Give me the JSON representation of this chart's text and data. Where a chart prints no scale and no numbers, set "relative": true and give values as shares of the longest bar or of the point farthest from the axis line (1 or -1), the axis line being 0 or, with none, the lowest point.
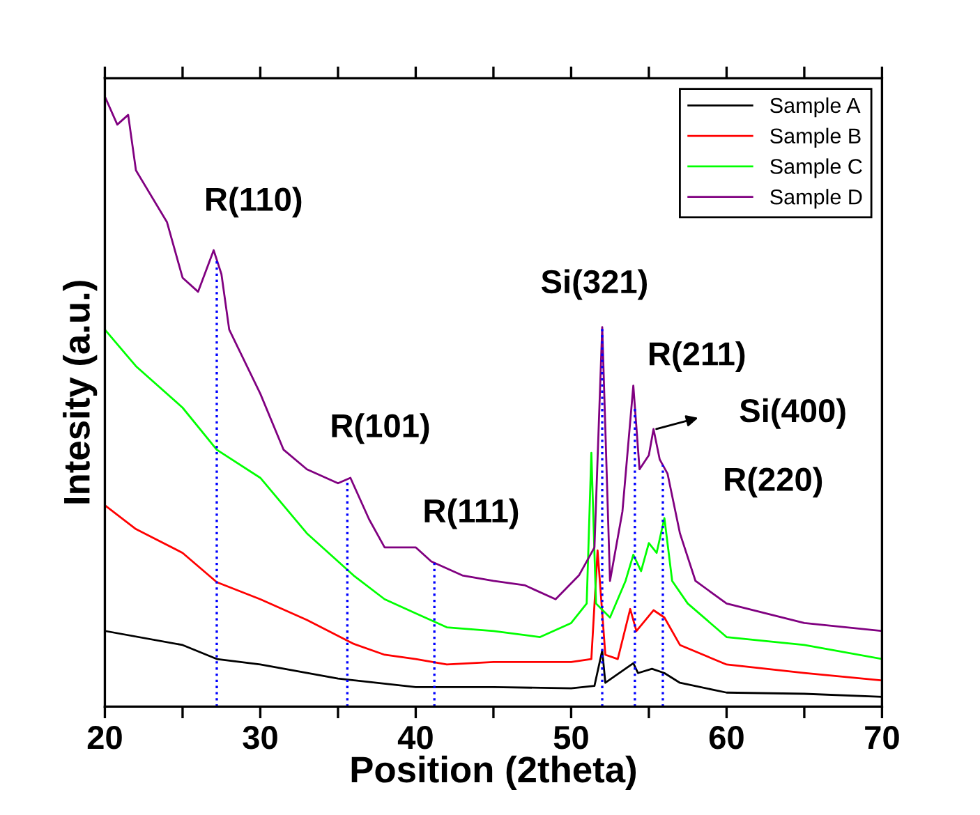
{
  "chart_data": {
    "type": "line",
    "relative": true,
    "xlabel": "Position (2theta)",
    "ylabel": "Intesity (a.u.)",
    "xlim": [
      20,
      70
    ],
    "xticks": [
      20,
      {
        "value": 25,
        "label": null
      },
      30,
      {
        "value": 35,
        "label": null
      },
      40,
      {
        "value": 45,
        "label": null
      },
      50,
      {
        "value": 55,
        "label": null
      },
      60,
      {
        "value": 65,
        "label": null
      },
      70
    ],
    "grid": false,
    "legend": "top right",
    "marker": "none",
    "line_style": "solid",
    "series": [
      {
        "name": "Sample A",
        "color": "#000000",
        "x": [
          20,
          25,
          27.2,
          30,
          35,
          40,
          45,
          50,
          51.5,
          52,
          52.2,
          54,
          54.3,
          55.2,
          56,
          57,
          60,
          65,
          70
        ],
        "values": [
          0.124,
          0.101,
          0.078,
          0.069,
          0.046,
          0.032,
          0.032,
          0.03,
          0.034,
          0.092,
          0.039,
          0.071,
          0.055,
          0.062,
          0.055,
          0.039,
          0.023,
          0.021,
          0.016
        ]
      },
      {
        "name": "Sample B",
        "color": "#ff0000",
        "x": [
          20,
          22,
          25,
          27.2,
          30,
          33,
          36,
          38,
          40,
          42,
          45,
          50,
          51.3,
          51.7,
          52.2,
          53,
          53.8,
          54.2,
          55.3,
          56,
          57,
          60,
          65,
          70
        ],
        "values": [
          0.33,
          0.291,
          0.252,
          0.204,
          0.176,
          0.142,
          0.103,
          0.085,
          0.078,
          0.069,
          0.073,
          0.073,
          0.078,
          0.256,
          0.085,
          0.078,
          0.16,
          0.124,
          0.158,
          0.146,
          0.101,
          0.069,
          0.055,
          0.043
        ]
      },
      {
        "name": "Sample C",
        "color": "#00ff00",
        "x": [
          20,
          22,
          25,
          27.2,
          30,
          33,
          36,
          38,
          40,
          42,
          45,
          48,
          50,
          51,
          51.3,
          51.6,
          52.5,
          53.5,
          54,
          54.5,
          55,
          55.5,
          56,
          56.5,
          57.5,
          60,
          65,
          70
        ],
        "values": [
          0.618,
          0.558,
          0.49,
          0.421,
          0.375,
          0.284,
          0.215,
          0.176,
          0.153,
          0.13,
          0.124,
          0.114,
          0.137,
          0.169,
          0.416,
          0.169,
          0.146,
          0.206,
          0.249,
          0.222,
          0.268,
          0.252,
          0.309,
          0.206,
          0.169,
          0.114,
          0.101,
          0.078
        ]
      },
      {
        "name": "Sample D",
        "color": "#800080",
        "x": [
          20,
          20.8,
          21.5,
          22,
          24,
          25,
          26,
          27,
          27.5,
          28,
          30,
          31.5,
          33,
          35,
          35.8,
          37,
          38,
          40,
          41,
          43,
          45,
          47,
          49,
          50.5,
          51.5,
          52,
          52.5,
          53.3,
          54,
          54.4,
          55,
          55.3,
          55.7,
          56.2,
          57,
          58,
          60,
          65,
          70
        ],
        "values": [
          1,
          0.954,
          0.97,
          0.879,
          0.794,
          0.703,
          0.68,
          0.748,
          0.709,
          0.618,
          0.513,
          0.421,
          0.389,
          0.366,
          0.375,
          0.307,
          0.261,
          0.261,
          0.238,
          0.215,
          0.206,
          0.199,
          0.176,
          0.215,
          0.261,
          0.622,
          0.206,
          0.32,
          0.526,
          0.389,
          0.412,
          0.455,
          0.405,
          0.382,
          0.284,
          0.206,
          0.169,
          0.137,
          0.124
        ]
      }
    ],
    "ref_lines": [
      {
        "axis": "x",
        "value": 27.2,
        "label": null,
        "color": "#0000ff",
        "line_style": "dotted"
      },
      {
        "axis": "x",
        "value": 35.6,
        "label": null,
        "color": "#0000ff",
        "line_style": "dotted"
      },
      {
        "axis": "x",
        "value": 41.2,
        "label": null,
        "color": "#0000ff",
        "line_style": "dotted"
      },
      {
        "axis": "x",
        "value": 52.0,
        "label": null,
        "color": "#0000ff",
        "line_style": "dotted"
      },
      {
        "axis": "x",
        "value": 54.1,
        "label": null,
        "color": "#0000ff",
        "line_style": "dotted"
      },
      {
        "axis": "x",
        "value": 55.9,
        "label": null,
        "color": "#0000ff",
        "line_style": "dotted"
      }
    ],
    "annotations": [
      {
        "text": "R(110)",
        "x": 27.2,
        "y": 0.7
      },
      {
        "text": "R(101)",
        "x": 35.6,
        "y": 0.37
      },
      {
        "text": "R(111)",
        "x": 41.2,
        "y": 0.24
      },
      {
        "text": "Si(321)",
        "x": 52.0,
        "y": 0.622
      },
      {
        "text": "R(211)",
        "x": 54.1,
        "y": 0.526
      },
      {
        "text": "Si(400)",
        "x": 55.3,
        "y": 0.455
      },
      {
        "text": "R(220)",
        "x": 55.9,
        "y": 0.39
      }
    ]
  }
}
